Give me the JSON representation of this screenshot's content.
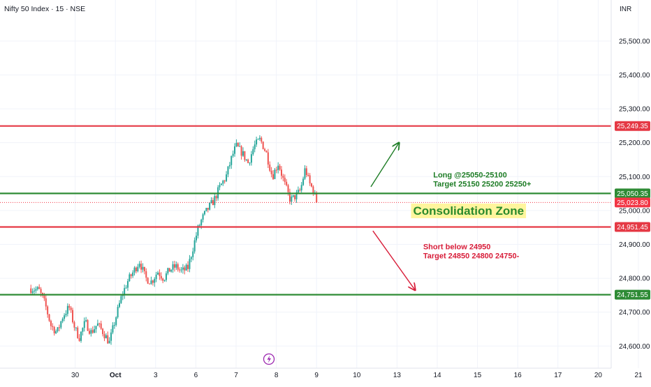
{
  "header": {
    "title": "Nifty 50 Index · 15 · NSE",
    "currency": "INR"
  },
  "colors": {
    "up": "#26a69a",
    "down": "#ef5350",
    "resistance": "#e53945",
    "support": "#2e8b35",
    "last_price": "#f23645",
    "grid": "#f0f3fa",
    "highlight": "#fff59d"
  },
  "chart_data": {
    "type": "candlestick",
    "y_range": [
      24580,
      25580
    ],
    "y_ticks": [
      "25,500.00",
      "25,400.00",
      "25,300.00",
      "25,200.00",
      "25,100.00",
      "25,000.00",
      "24,900.00",
      "24,800.00",
      "24,700.00",
      "24,600.00"
    ],
    "y_tick_values": [
      25500,
      25400,
      25300,
      25200,
      25100,
      25000,
      24900,
      24800,
      24700,
      24600
    ],
    "x_range": [
      0,
      16.5
    ],
    "x_ticks": [
      {
        "label": "30",
        "x": 1
      },
      {
        "label": "Oct",
        "x": 2
      },
      {
        "label": "3",
        "x": 3
      },
      {
        "label": "6",
        "x": 4
      },
      {
        "label": "7",
        "x": 5
      },
      {
        "label": "8",
        "x": 6
      },
      {
        "label": "9",
        "x": 7
      },
      {
        "label": "10",
        "x": 8
      },
      {
        "label": "13",
        "x": 9
      },
      {
        "label": "14",
        "x": 10
      },
      {
        "label": "15",
        "x": 11
      },
      {
        "label": "16",
        "x": 12
      },
      {
        "label": "17",
        "x": 13
      },
      {
        "label": "20",
        "x": 14
      },
      {
        "label": "21",
        "x": 15
      }
    ],
    "levels": [
      {
        "name": "resistance",
        "value": 25249.35,
        "label": "25,249.35",
        "style": "solid-red"
      },
      {
        "name": "long-entry",
        "value": 25050.35,
        "label": "25,050.35",
        "style": "solid-green"
      },
      {
        "name": "last-price",
        "value": 25023.8,
        "label": "25,023.80",
        "style": "dotted-red"
      },
      {
        "name": "short-entry",
        "value": 24951.45,
        "label": "24,951.45",
        "style": "solid-red"
      },
      {
        "name": "support",
        "value": 24751.55,
        "label": "24,751.55",
        "style": "solid-green"
      }
    ],
    "price_path": [
      [
        -0.1,
        24770
      ],
      [
        0.1,
        24765
      ],
      [
        0.25,
        24725
      ],
      [
        0.4,
        24660
      ],
      [
        0.55,
        24640
      ],
      [
        0.7,
        24690
      ],
      [
        0.85,
        24715
      ],
      [
        1.0,
        24650
      ],
      [
        1.1,
        24625
      ],
      [
        1.25,
        24670
      ],
      [
        1.4,
        24640
      ],
      [
        1.55,
        24665
      ],
      [
        1.7,
        24640
      ],
      [
        1.85,
        24610
      ],
      [
        2.0,
        24680
      ],
      [
        2.15,
        24745
      ],
      [
        2.3,
        24790
      ],
      [
        2.45,
        24820
      ],
      [
        2.6,
        24850
      ],
      [
        2.75,
        24800
      ],
      [
        2.9,
        24790
      ],
      [
        3.05,
        24820
      ],
      [
        3.2,
        24800
      ],
      [
        3.35,
        24825
      ],
      [
        3.5,
        24835
      ],
      [
        3.65,
        24820
      ],
      [
        3.8,
        24830
      ],
      [
        3.95,
        24900
      ],
      [
        4.05,
        24945
      ],
      [
        4.15,
        24975
      ],
      [
        4.3,
        25005
      ],
      [
        4.45,
        25030
      ],
      [
        4.6,
        25070
      ],
      [
        4.75,
        25100
      ],
      [
        4.9,
        25160
      ],
      [
        5.0,
        25190
      ],
      [
        5.15,
        25170
      ],
      [
        5.3,
        25140
      ],
      [
        5.45,
        25190
      ],
      [
        5.6,
        25210
      ],
      [
        5.75,
        25170
      ],
      [
        5.9,
        25100
      ],
      [
        6.05,
        25140
      ],
      [
        6.2,
        25080
      ],
      [
        6.35,
        25030
      ],
      [
        6.5,
        25045
      ],
      [
        6.6,
        25060
      ],
      [
        6.72,
        25125
      ],
      [
        6.82,
        25080
      ],
      [
        6.92,
        25060
      ],
      [
        7.0,
        25023.8
      ]
    ],
    "annotations": [
      {
        "name": "long-note",
        "lines": [
          "Long @25050-25100",
          "Target 25150 25200 25250+"
        ],
        "color": "green",
        "x": 9.9,
        "y": 25098
      },
      {
        "name": "short-note",
        "lines": [
          "Short below 24950",
          "Target 24850 24800 24750-"
        ],
        "color": "red",
        "x": 9.65,
        "y": 24886
      },
      {
        "name": "consolidation-zone",
        "text": "Consolidation Zone",
        "x": 9.4,
        "y": 25000
      }
    ],
    "arrows": [
      {
        "name": "long-arrow",
        "from": [
          8.35,
          25070
        ],
        "to": [
          9.05,
          25200
        ],
        "color": "green"
      },
      {
        "name": "short-arrow",
        "from": [
          8.4,
          24940
        ],
        "to": [
          9.45,
          24765
        ],
        "color": "red"
      }
    ],
    "grid": true
  }
}
